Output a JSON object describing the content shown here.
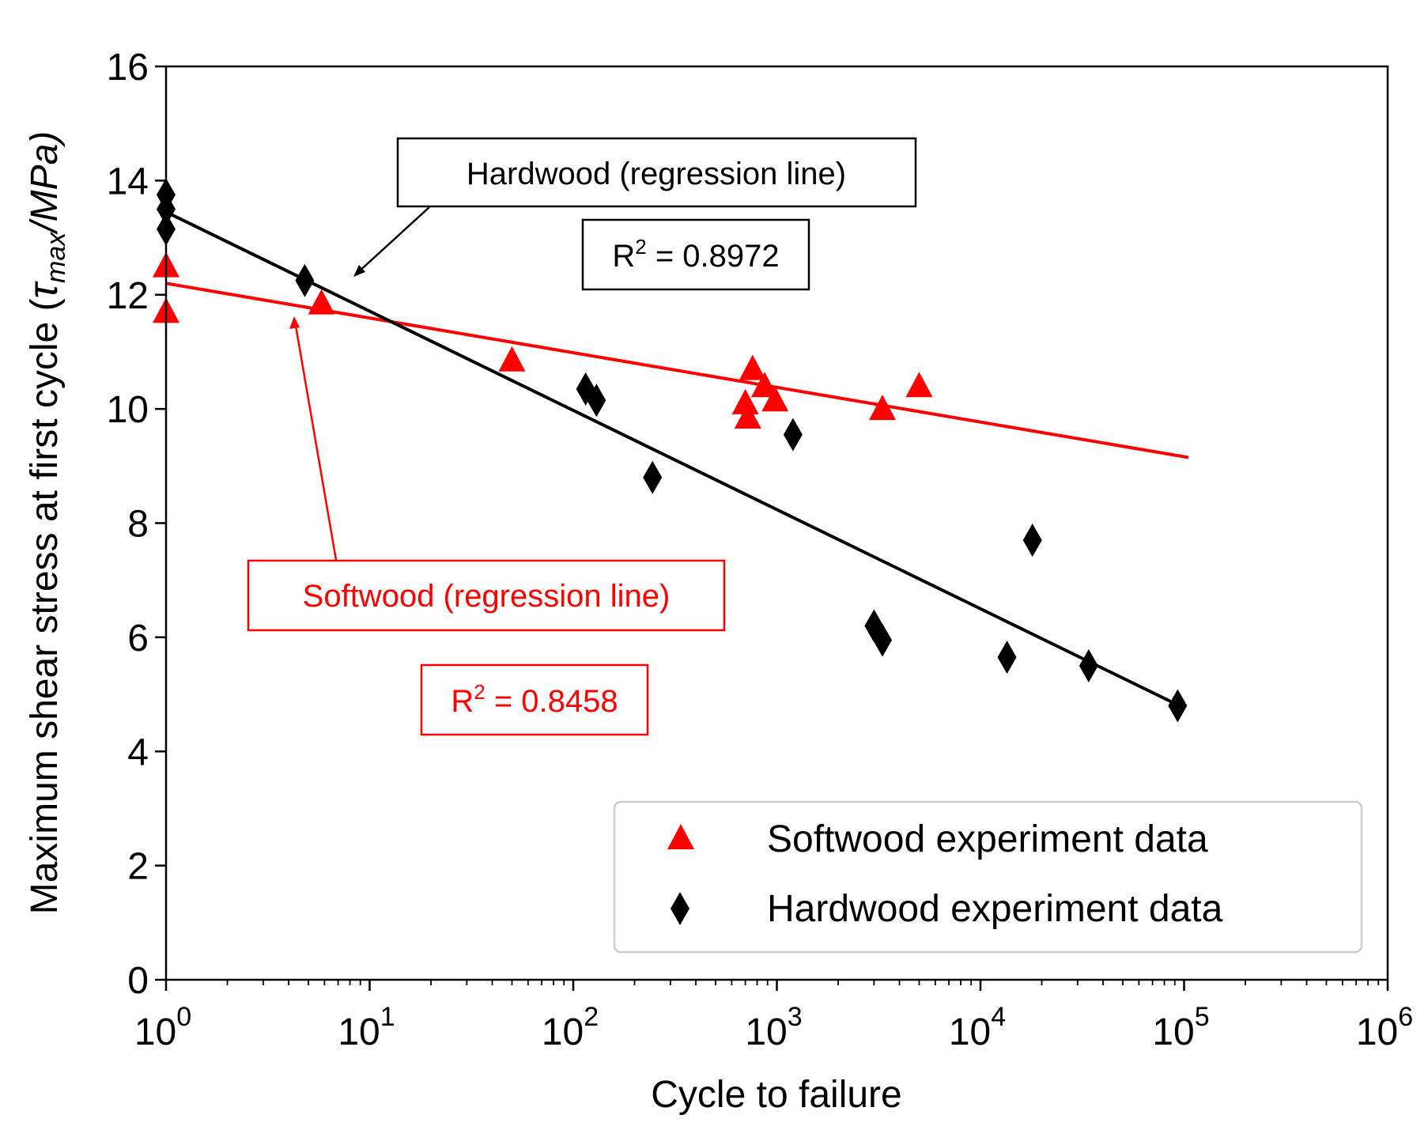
{
  "chart_data": {
    "type": "scatter",
    "title": "",
    "xlabel": "Cycle to failure",
    "ylabel": {
      "prefix": "Maximum shear stress at first cycle (",
      "tau": "τ",
      "sub": "max",
      "suffix": "/MPa)"
    },
    "xscale": "log",
    "xlim": [
      1,
      1000000
    ],
    "ylim": [
      0,
      16
    ],
    "x_ticks": [
      {
        "value": 1,
        "base": "10",
        "exp": "0"
      },
      {
        "value": 10,
        "base": "10",
        "exp": "1"
      },
      {
        "value": 100,
        "base": "10",
        "exp": "2"
      },
      {
        "value": 1000,
        "base": "10",
        "exp": "3"
      },
      {
        "value": 10000,
        "base": "10",
        "exp": "4"
      },
      {
        "value": 100000,
        "base": "10",
        "exp": "5"
      },
      {
        "value": 1000000,
        "base": "10",
        "exp": "6"
      }
    ],
    "y_ticks": [
      {
        "value": 0,
        "label": "0"
      },
      {
        "value": 2,
        "label": "2"
      },
      {
        "value": 4,
        "label": "4"
      },
      {
        "value": 6,
        "label": "6"
      },
      {
        "value": 8,
        "label": "8"
      },
      {
        "value": 10,
        "label": "10"
      },
      {
        "value": 12,
        "label": "12"
      },
      {
        "value": 14,
        "label": "14"
      },
      {
        "value": 16,
        "label": "16"
      }
    ],
    "grid": false,
    "legend_position": "bottom-right",
    "series": [
      {
        "name": "Softwood experiment data",
        "marker": "triangle",
        "color": "#ff0000",
        "points": [
          {
            "x": 1,
            "y": 12.5
          },
          {
            "x": 1,
            "y": 11.7
          },
          {
            "x": 5.8,
            "y": 11.85
          },
          {
            "x": 50,
            "y": 10.85
          },
          {
            "x": 700,
            "y": 10.1
          },
          {
            "x": 720,
            "y": 9.85
          },
          {
            "x": 760,
            "y": 10.7
          },
          {
            "x": 870,
            "y": 10.4
          },
          {
            "x": 980,
            "y": 10.15
          },
          {
            "x": 3300,
            "y": 10.0
          },
          {
            "x": 5000,
            "y": 10.4
          }
        ]
      },
      {
        "name": "Hardwood experiment data",
        "marker": "diamond",
        "color": "#000000",
        "points": [
          {
            "x": 1,
            "y": 13.75
          },
          {
            "x": 1,
            "y": 13.5
          },
          {
            "x": 1,
            "y": 13.15
          },
          {
            "x": 4.8,
            "y": 12.25
          },
          {
            "x": 115,
            "y": 10.35
          },
          {
            "x": 130,
            "y": 10.15
          },
          {
            "x": 245,
            "y": 8.8
          },
          {
            "x": 1200,
            "y": 9.55
          },
          {
            "x": 3000,
            "y": 6.2
          },
          {
            "x": 3300,
            "y": 5.95
          },
          {
            "x": 13500,
            "y": 5.65
          },
          {
            "x": 18000,
            "y": 7.7
          },
          {
            "x": 34000,
            "y": 5.5
          },
          {
            "x": 93000,
            "y": 4.8
          }
        ]
      }
    ],
    "regression_lines": [
      {
        "name": "Softwood (regression line)",
        "color": "#ff0000",
        "x_start": 1,
        "y_start": 12.2,
        "x_end": 105000,
        "y_end": 9.15
      },
      {
        "name": "Hardwood (regression line)",
        "color": "#000000",
        "x_start": 1,
        "y_start": 13.45,
        "x_end": 95000,
        "y_end": 4.8
      }
    ],
    "annotations": [
      {
        "text": "Hardwood (regression line)",
        "color": "#000000",
        "arrow_to": {
          "x": 9,
          "y": 12.3
        }
      },
      {
        "text": "R",
        "sup": "2",
        "rest": " = 0.8972",
        "color": "#000000"
      },
      {
        "text": "Softwood (regression line)",
        "color": "#ff0000",
        "arrow_to": {
          "x": 4.2,
          "y": 11.6
        }
      },
      {
        "text": "R",
        "sup": "2",
        "rest": " = 0.8458",
        "color": "#ff0000"
      }
    ]
  }
}
